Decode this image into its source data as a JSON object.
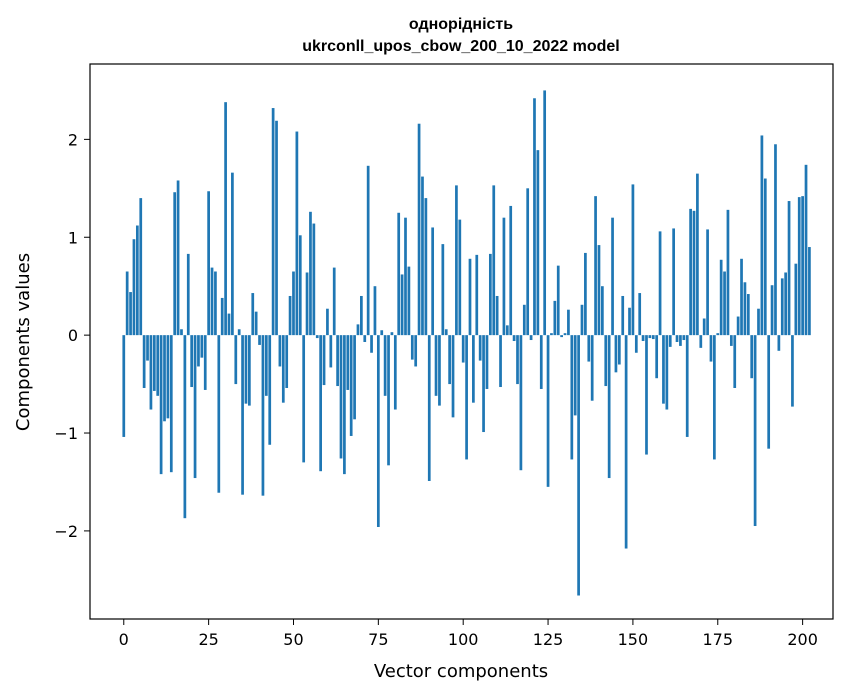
{
  "chart_data": {
    "type": "bar",
    "title": "однорідність",
    "subtitle": "ukrconll_upos_cbow_200_10_2022 model",
    "xlabel": "Vector components",
    "ylabel": "Components values",
    "xlim": [
      -9.95,
      208.95
    ],
    "ylim": [
      -2.9,
      2.77
    ],
    "xticks": [
      0,
      25,
      50,
      75,
      100,
      125,
      150,
      175,
      200
    ],
    "yticks": [
      -2,
      -1,
      0,
      1,
      2
    ],
    "ytick_labels": [
      "−2",
      "−1",
      "0",
      "1",
      "2"
    ],
    "bar_color": "#1f77b4",
    "grid": false,
    "values": [
      -1.04,
      0.65,
      0.44,
      0.98,
      1.12,
      1.4,
      -0.54,
      -0.26,
      -0.76,
      -0.57,
      -0.62,
      -1.42,
      -0.88,
      -0.85,
      -1.4,
      1.46,
      1.58,
      0.06,
      -1.87,
      0.83,
      -0.53,
      -1.46,
      -0.32,
      -0.23,
      -0.56,
      1.47,
      0.69,
      0.65,
      -1.61,
      0.38,
      2.38,
      0.22,
      1.66,
      -0.5,
      0.06,
      -1.63,
      -0.7,
      -0.72,
      0.43,
      0.24,
      -0.1,
      -1.64,
      -0.62,
      -1.12,
      2.32,
      2.19,
      -0.32,
      -0.69,
      -0.54,
      0.4,
      0.65,
      2.08,
      1.02,
      -1.3,
      0.64,
      1.26,
      1.14,
      -0.03,
      -1.39,
      -0.51,
      0.27,
      -0.33,
      0.69,
      -0.52,
      -1.26,
      -1.42,
      -0.56,
      -1.03,
      -0.86,
      0.11,
      0.4,
      -0.07,
      1.73,
      -0.18,
      0.5,
      -1.96,
      0.05,
      -0.62,
      -1.33,
      0.03,
      -0.76,
      1.25,
      0.62,
      1.2,
      0.7,
      -0.25,
      -0.32,
      2.16,
      1.62,
      1.4,
      -1.49,
      1.1,
      -0.62,
      -0.72,
      0.93,
      0.06,
      -0.5,
      -0.84,
      1.53,
      1.18,
      -0.28,
      -1.27,
      0.78,
      -0.69,
      0.82,
      -0.26,
      -0.99,
      -0.55,
      0.83,
      1.53,
      0.4,
      -0.53,
      1.2,
      0.1,
      1.32,
      -0.06,
      -0.5,
      -1.38,
      0.31,
      1.5,
      -0.05,
      2.42,
      1.89,
      -0.55,
      2.5,
      -1.55,
      0.02,
      0.35,
      0.71,
      -0.02,
      0.02,
      0.26,
      -1.27,
      -0.82,
      -2.66,
      0.31,
      0.84,
      -0.27,
      -0.67,
      1.42,
      0.92,
      0.5,
      -0.52,
      -1.46,
      1.2,
      -0.38,
      -0.3,
      0.4,
      -2.18,
      0.28,
      1.54,
      -0.18,
      0.43,
      -0.06,
      -1.22,
      -0.03,
      -0.04,
      -0.44,
      1.06,
      -0.7,
      -0.76,
      -0.12,
      1.09,
      -0.07,
      -0.11,
      -0.05,
      -1.04,
      1.29,
      1.27,
      1.65,
      -0.13,
      0.17,
      1.08,
      -0.27,
      -1.27,
      0.02,
      0.77,
      0.65,
      1.28,
      -0.11,
      -0.54,
      0.19,
      0.78,
      0.54,
      0.42,
      -0.44,
      -1.95,
      0.27,
      2.04,
      1.6,
      -1.16,
      0.51,
      1.95,
      -0.16,
      0.58,
      0.64,
      1.37,
      -0.73,
      0.73,
      1.41,
      1.42,
      1.74,
      0.9
    ]
  }
}
